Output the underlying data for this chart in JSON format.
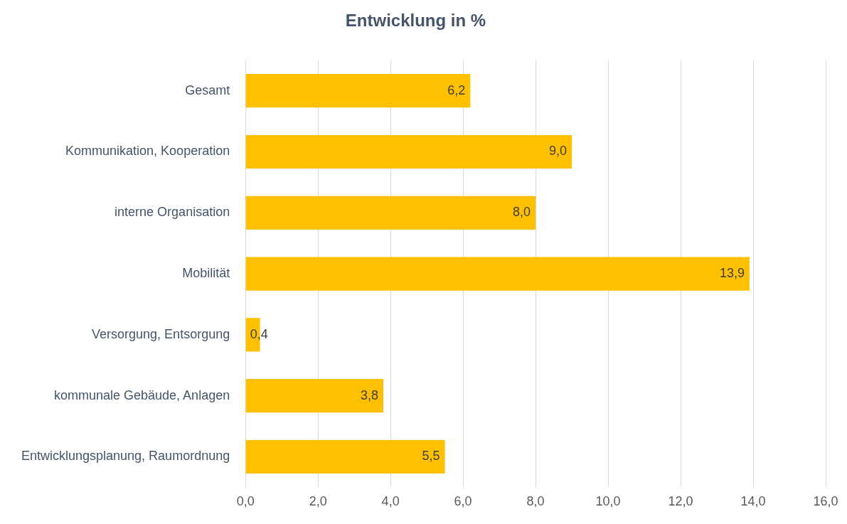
{
  "chart_data": {
    "type": "bar",
    "orientation": "horizontal",
    "title": "Entwicklung in %",
    "categories": [
      "Gesamt",
      "Kommunikation, Kooperation",
      "interne Organisation",
      "Mobilität",
      "Versorgung, Entsorgung",
      "kommunale Gebäude, Anlagen",
      "Entwicklungsplanung, Raumordnung"
    ],
    "values": [
      6.2,
      9.0,
      8.0,
      13.9,
      0.4,
      3.8,
      5.5
    ],
    "value_labels": [
      "6,2",
      "9,0",
      "8,0",
      "13,9",
      "0,4",
      "3,8",
      "5,5"
    ],
    "color": "#ffc000",
    "xlim": [
      0,
      16
    ],
    "xticks": [
      {
        "value": 0,
        "label": "0,0"
      },
      {
        "value": 2,
        "label": "2,0"
      },
      {
        "value": 4,
        "label": "4,0"
      },
      {
        "value": 6,
        "label": "6,0"
      },
      {
        "value": 8,
        "label": "8,0"
      },
      {
        "value": 10,
        "label": "10,0"
      },
      {
        "value": 12,
        "label": "12,0"
      },
      {
        "value": 14,
        "label": "14,0"
      },
      {
        "value": 16,
        "label": "16,0"
      }
    ],
    "grid": "x",
    "legend": false
  }
}
